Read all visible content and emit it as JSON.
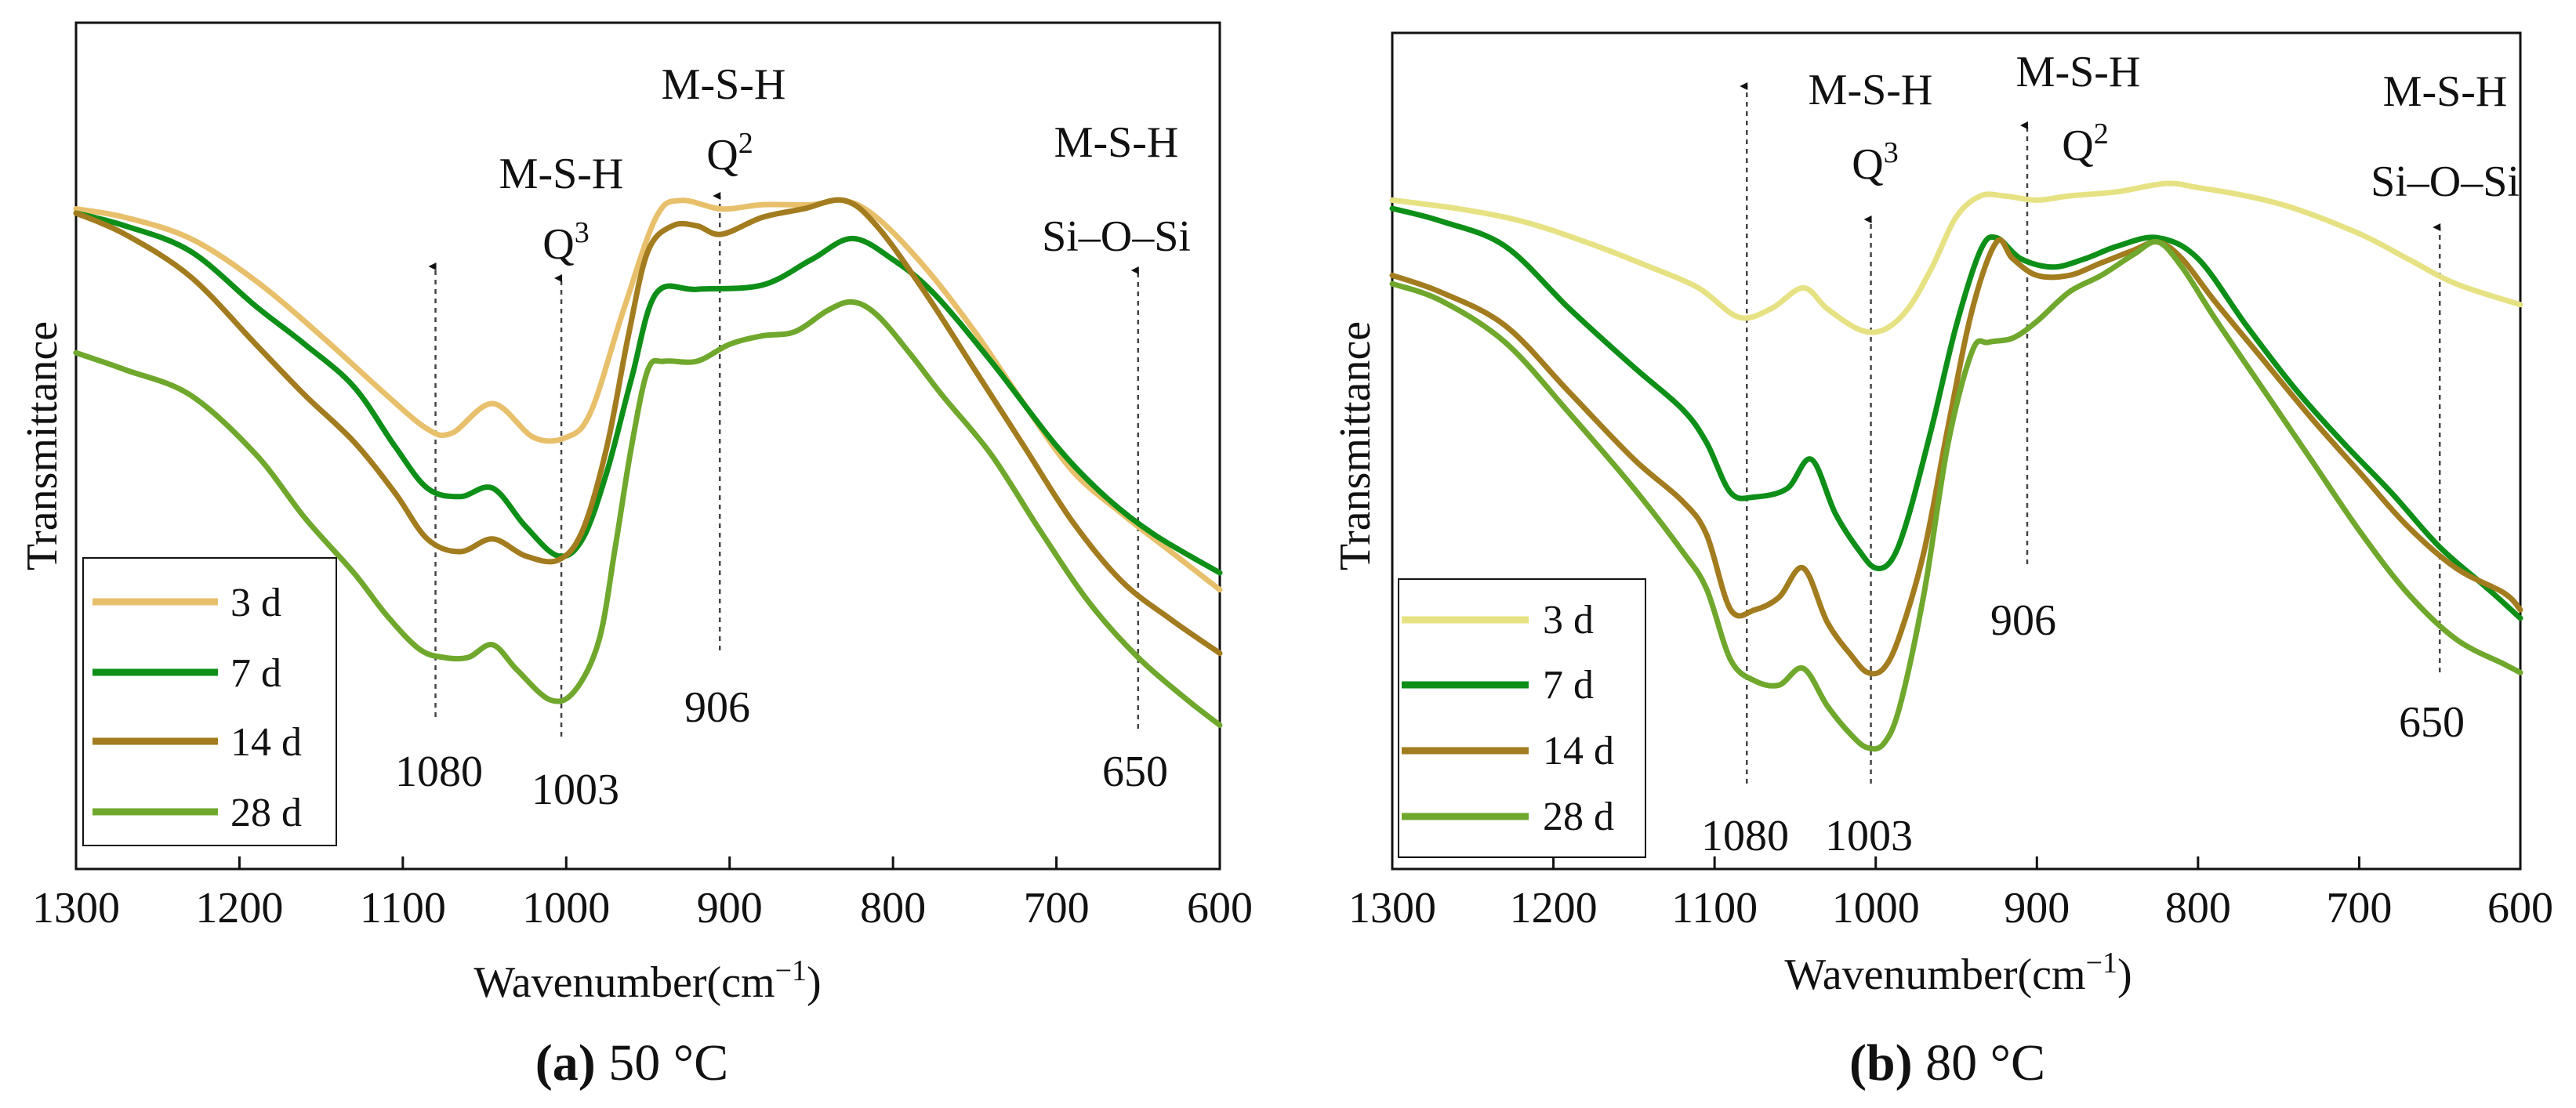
{
  "colors": {
    "3 d (a)": "#e8c06c",
    "3 d (b)": "#e6e283",
    "7 d": "#0e8f18",
    "14 d": "#a27c1e",
    "28 d": "#6fa82c"
  },
  "chart_data": [
    {
      "type": "line",
      "title": "",
      "caption": {
        "letter": "a",
        "text": " 50 °C"
      },
      "xlabel": "Wavenumber(cm",
      "xlabel_sup": "−1",
      "xlabel_end": ")",
      "ylabel": "Transmittance",
      "xlim": [
        1300,
        600
      ],
      "x_reversed": true,
      "ylim": [
        0,
        100
      ],
      "y_ticks_shown": false,
      "x_ticks": [
        1300,
        1200,
        1100,
        1000,
        900,
        800,
        700,
        600
      ],
      "grid": false,
      "legend_position": "bottom-left",
      "series": [
        {
          "name": "3 d",
          "color_key": "3 d (a)",
          "x": [
            1300,
            1270,
            1230,
            1190,
            1150,
            1110,
            1085,
            1070,
            1045,
            1020,
            1000,
            985,
            965,
            945,
            930,
            905,
            880,
            850,
            830,
            810,
            780,
            750,
            720,
            690,
            660,
            630,
            600
          ],
          "y": [
            78,
            77,
            74.5,
            69.5,
            63,
            56,
            52,
            51.5,
            55,
            51,
            51,
            54,
            66,
            77,
            79,
            78,
            78.5,
            78.5,
            79,
            77,
            71,
            63.5,
            55,
            47,
            42,
            37.5,
            33
          ]
        },
        {
          "name": "7 d",
          "color_key": "7 d",
          "x": [
            1300,
            1270,
            1230,
            1190,
            1160,
            1130,
            1105,
            1085,
            1065,
            1045,
            1025,
            1005,
            990,
            975,
            960,
            945,
            920,
            880,
            850,
            825,
            800,
            775,
            740,
            700,
            670,
            640,
            600
          ],
          "y": [
            77.5,
            76,
            73,
            66.5,
            62,
            57,
            50,
            45,
            44,
            45,
            40.5,
            37,
            39,
            47,
            58,
            68,
            68.5,
            69,
            72,
            74.5,
            72,
            68,
            60,
            50,
            44,
            39.5,
            35
          ]
        },
        {
          "name": "14 d",
          "color_key": "14 d",
          "x": [
            1300,
            1270,
            1230,
            1190,
            1160,
            1130,
            1105,
            1085,
            1065,
            1045,
            1025,
            1005,
            990,
            975,
            962,
            950,
            935,
            920,
            905,
            880,
            855,
            830,
            810,
            780,
            750,
            720,
            690,
            660,
            630,
            600
          ],
          "y": [
            77.5,
            75,
            70,
            62,
            56,
            50.5,
            44.5,
            39,
            37.5,
            39,
            37,
            36.5,
            40,
            50,
            63,
            73,
            76,
            76,
            75,
            77,
            78,
            79,
            76,
            68,
            59,
            50,
            41,
            34,
            29.5,
            25.5
          ]
        },
        {
          "name": "28 d",
          "color_key": "28 d",
          "x": [
            1300,
            1270,
            1230,
            1190,
            1160,
            1130,
            1110,
            1090,
            1075,
            1060,
            1045,
            1030,
            1010,
            995,
            980,
            970,
            960,
            950,
            940,
            920,
            900,
            880,
            860,
            840,
            825,
            810,
            790,
            770,
            740,
            710,
            680,
            650,
            620,
            600
          ],
          "y": [
            61,
            59,
            56,
            49,
            41.5,
            35,
            30,
            26,
            25,
            25,
            26.5,
            23.5,
            20,
            21,
            27,
            38,
            50,
            59,
            60,
            60,
            62,
            63,
            63.5,
            66,
            67,
            65.5,
            61,
            56,
            49,
            40,
            31.5,
            25,
            20,
            17
          ]
        }
      ],
      "annotations": [
        {
          "lines": [
            "1080"
          ],
          "at": 1080
        },
        {
          "lines": [
            "1003"
          ],
          "at": 1003
        },
        {
          "lines": [
            "906"
          ],
          "at": 906
        },
        {
          "lines": [
            "650"
          ],
          "at": 650
        },
        {
          "lines": [
            "M-S-H",
            "Q3"
          ],
          "note": "Q3 printed with superscript 3",
          "at": 1003
        },
        {
          "lines": [
            "M-S-H",
            "Q2"
          ],
          "note": "Q2 printed with superscript 2",
          "at": 906
        },
        {
          "lines": [
            "M-S-H",
            "Si–O–Si"
          ],
          "at": 650
        }
      ]
    },
    {
      "type": "line",
      "title": "",
      "caption": {
        "letter": "b",
        "text": " 80 °C"
      },
      "xlabel": "Wavenumber(cm",
      "xlabel_sup": "−1",
      "xlabel_end": ")",
      "ylabel": "Transmittance",
      "xlim": [
        1300,
        600
      ],
      "x_reversed": true,
      "ylim": [
        0,
        100
      ],
      "y_ticks_shown": false,
      "x_ticks": [
        1300,
        1200,
        1100,
        1000,
        900,
        800,
        700,
        600
      ],
      "grid": false,
      "legend_position": "bottom-left",
      "series": [
        {
          "name": "3 d",
          "color_key": "3 d (b)",
          "x": [
            1300,
            1260,
            1220,
            1180,
            1140,
            1110,
            1085,
            1065,
            1045,
            1030,
            1010,
            995,
            980,
            965,
            950,
            935,
            920,
            900,
            880,
            850,
            820,
            800,
            770,
            740,
            700,
            670,
            640,
            600
          ],
          "y": [
            80,
            79,
            77.5,
            75,
            72,
            69.5,
            66,
            67,
            69.5,
            67,
            64.5,
            64.5,
            67,
            72,
            78,
            80.5,
            80.5,
            80,
            80.5,
            81,
            82,
            81.5,
            80.5,
            79,
            76,
            73,
            70,
            67.5
          ]
        },
        {
          "name": "7 d",
          "color_key": "7 d",
          "x": [
            1300,
            1270,
            1230,
            1190,
            1150,
            1120,
            1105,
            1090,
            1075,
            1055,
            1040,
            1025,
            1010,
            1000,
            990,
            980,
            965,
            950,
            935,
            925,
            910,
            890,
            870,
            850,
            825,
            800,
            770,
            740,
            710,
            680,
            650,
            620,
            600
          ],
          "y": [
            79,
            77.5,
            74.5,
            67,
            60,
            55,
            51,
            45,
            44.5,
            45.5,
            49,
            42.5,
            38,
            36,
            37,
            42,
            53,
            65,
            74,
            75.5,
            73,
            72,
            73,
            74.5,
            75.5,
            73,
            65,
            57.5,
            51,
            45,
            38.5,
            33.5,
            30
          ]
        },
        {
          "name": "14 d",
          "color_key": "14 d",
          "x": [
            1300,
            1270,
            1230,
            1190,
            1150,
            1120,
            1105,
            1090,
            1075,
            1060,
            1045,
            1030,
            1015,
            1005,
            995,
            985,
            970,
            955,
            940,
            925,
            915,
            900,
            880,
            860,
            840,
            825,
            810,
            790,
            760,
            730,
            700,
            670,
            640,
            610,
            600
          ],
          "y": [
            71,
            69,
            65,
            57,
            49,
            44,
            40,
            31,
            31,
            32.5,
            36,
            29.5,
            25.5,
            23.5,
            24,
            28,
            38,
            53,
            67,
            75,
            73,
            71,
            71,
            72.5,
            74,
            75,
            73,
            68,
            61,
            54,
            47.5,
            41,
            36,
            33,
            31
          ]
        },
        {
          "name": "28 d",
          "color_key": "28 d",
          "x": [
            1300,
            1270,
            1230,
            1190,
            1150,
            1120,
            1105,
            1090,
            1075,
            1060,
            1045,
            1030,
            1015,
            1005,
            995,
            985,
            970,
            955,
            940,
            930,
            915,
            900,
            880,
            860,
            840,
            825,
            810,
            790,
            760,
            730,
            700,
            670,
            640,
            610,
            600
          ],
          "y": [
            70,
            68,
            63,
            54.5,
            45.5,
            38,
            33.5,
            25,
            22.5,
            22,
            24,
            19.5,
            16,
            14.5,
            15,
            19.5,
            33,
            51,
            62,
            63,
            63.5,
            65.5,
            69,
            71,
            73.5,
            75,
            72,
            66,
            57.5,
            49,
            40.5,
            33,
            27.5,
            24.5,
            23.5
          ]
        }
      ],
      "annotations": [
        {
          "lines": [
            "1080"
          ],
          "at": 1080
        },
        {
          "lines": [
            "1003"
          ],
          "at": 1003
        },
        {
          "lines": [
            "906"
          ],
          "at": 906
        },
        {
          "lines": [
            "650"
          ],
          "at": 650
        },
        {
          "lines": [
            "M-S-H",
            "Q3"
          ],
          "note": "Q3 printed with superscript 3",
          "at": 1003
        },
        {
          "lines": [
            "M-S-H",
            "Q2"
          ],
          "note": "Q2 printed with superscript 2",
          "at": 906
        },
        {
          "lines": [
            "M-S-H",
            "Si–O–Si"
          ],
          "at": 650
        }
      ]
    }
  ]
}
